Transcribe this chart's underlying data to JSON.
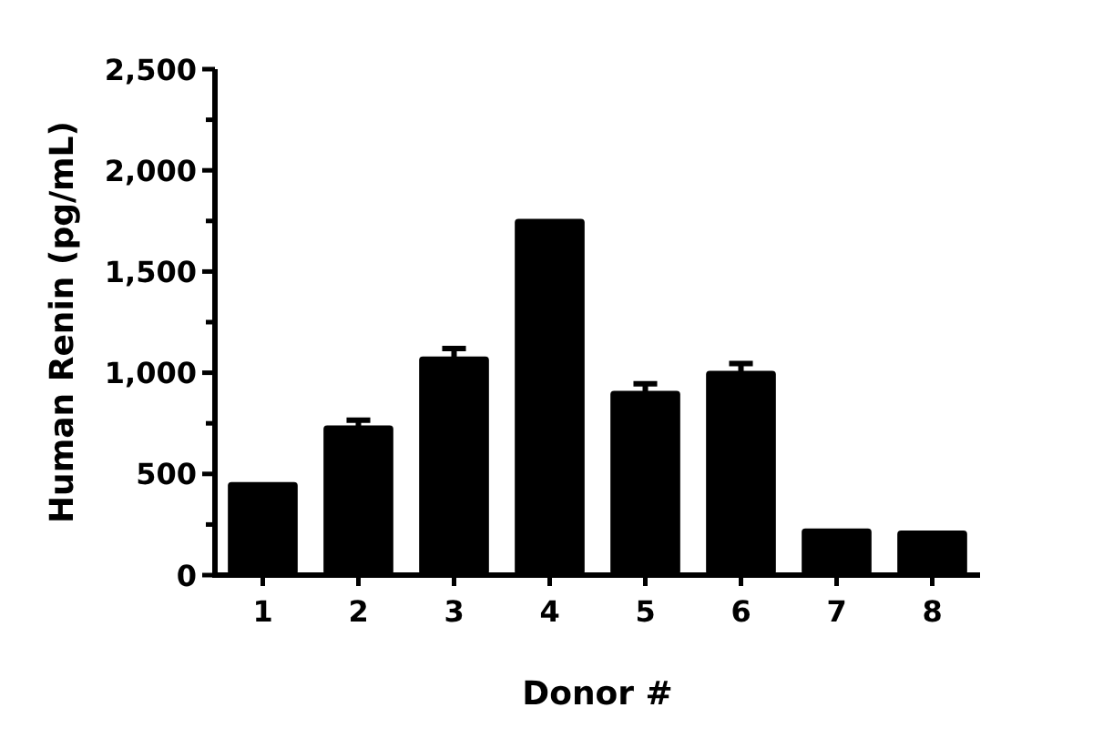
{
  "chart_data": {
    "type": "bar",
    "xlabel": "Donor #",
    "ylabel": "Human Renin (pg/mL)",
    "categories": [
      "1",
      "2",
      "3",
      "4",
      "5",
      "6",
      "7",
      "8"
    ],
    "values": [
      460,
      740,
      1080,
      1760,
      910,
      1010,
      230,
      220
    ],
    "errors": [
      null,
      25,
      40,
      null,
      35,
      35,
      null,
      null
    ],
    "color": "#000000",
    "ylim": [
      0,
      2500
    ],
    "yticks": [
      0,
      {
        "value": 250,
        "label": null
      },
      {
        "value": 500,
        "label": "500"
      },
      {
        "value": 750,
        "label": null
      },
      {
        "value": 1000,
        "label": "1,000"
      },
      {
        "value": 1250,
        "label": null
      },
      {
        "value": 1500,
        "label": "1,500"
      },
      {
        "value": 1750,
        "label": null
      },
      {
        "value": 2000,
        "label": "2,000"
      },
      {
        "value": 2250,
        "label": null
      },
      {
        "value": 2500,
        "label": "2,500"
      }
    ],
    "grid": false
  }
}
